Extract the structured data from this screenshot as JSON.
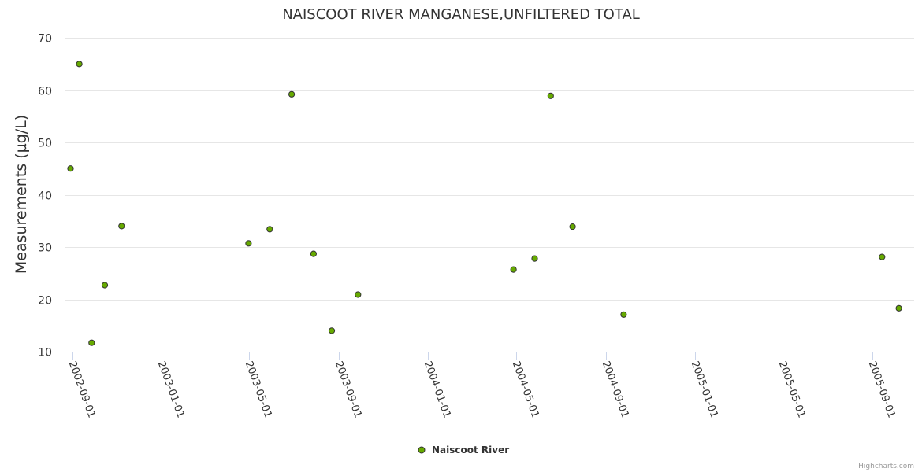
{
  "chart_data": {
    "type": "scatter",
    "title": "NAISCOOT RIVER MANGANESE,UNFILTERED TOTAL",
    "xlabel": "",
    "ylabel": "Measurements (µg/L)",
    "x_tick_labels": [
      "2002-09-01",
      "2003-01-01",
      "2003-05-01",
      "2003-09-01",
      "2004-01-01",
      "2004-05-01",
      "2004-09-01",
      "2005-01-01",
      "2005-05-01",
      "2005-09-01"
    ],
    "xlim": [
      "2002-08-22",
      "2005-10-28"
    ],
    "ylim": [
      10,
      70
    ],
    "y_ticks": [
      10,
      20,
      30,
      40,
      50,
      60,
      70
    ],
    "grid": true,
    "legend_position": "bottom-center",
    "series": [
      {
        "name": "Naiscoot River",
        "color": "#66aa00",
        "points": [
          {
            "x": "2002-08-29",
            "y": 45
          },
          {
            "x": "2002-09-10",
            "y": 65
          },
          {
            "x": "2002-09-27",
            "y": 11.7
          },
          {
            "x": "2002-10-15",
            "y": 22.7
          },
          {
            "x": "2002-11-07",
            "y": 34
          },
          {
            "x": "2003-04-30",
            "y": 30.7
          },
          {
            "x": "2003-05-29",
            "y": 33.4
          },
          {
            "x": "2003-06-28",
            "y": 59.2
          },
          {
            "x": "2003-07-28",
            "y": 28.7
          },
          {
            "x": "2003-08-22",
            "y": 14
          },
          {
            "x": "2003-09-27",
            "y": 20.9
          },
          {
            "x": "2004-04-27",
            "y": 25.7
          },
          {
            "x": "2004-05-26",
            "y": 27.8
          },
          {
            "x": "2004-06-17",
            "y": 58.9
          },
          {
            "x": "2004-07-17",
            "y": 33.9
          },
          {
            "x": "2004-09-25",
            "y": 17.1
          },
          {
            "x": "2005-09-14",
            "y": 28.1
          },
          {
            "x": "2005-10-07",
            "y": 18.3
          }
        ]
      }
    ]
  },
  "credits": "Highcharts.com"
}
